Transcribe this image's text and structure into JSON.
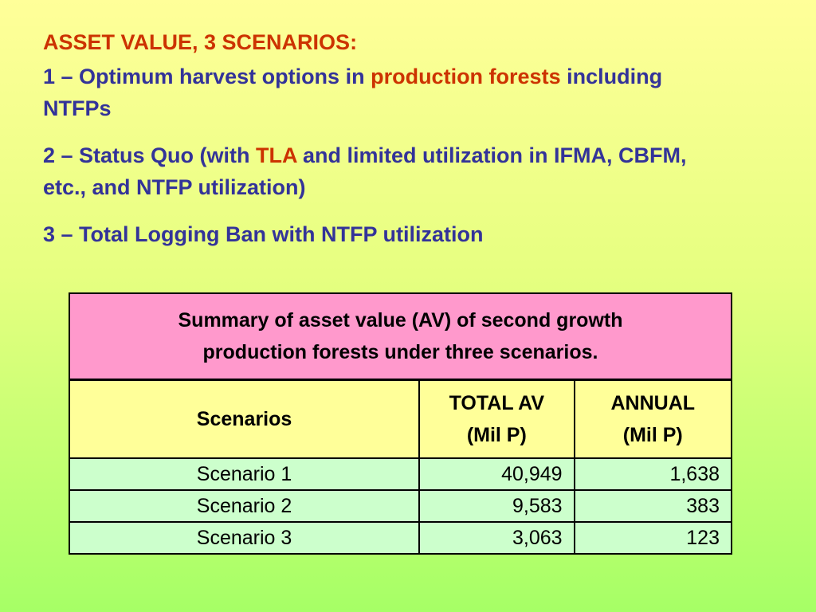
{
  "heading": "ASSET VALUE, 3 SCENARIOS:",
  "items": [
    {
      "prefix": "1 – Optimum harvest options in ",
      "accent": "production forests",
      "suffix": " including NTFPs"
    },
    {
      "prefix": "2 – Status Quo (with ",
      "accent": "TLA",
      "suffix": " and limited utilization in IFMA, CBFM, etc., and NTFP utilization)"
    },
    {
      "text": "3 – Total Logging Ban with NTFP utilization"
    }
  ],
  "table": {
    "caption_line1": "Summary of asset value (AV) of second growth",
    "caption_line2": "production forests under three scenarios.",
    "headers": {
      "scenarios": "Scenarios",
      "total_line1": "TOTAL AV",
      "total_line2": "(Mil P)",
      "annual_line1": "ANNUAL",
      "annual_line2": "(Mil P)"
    },
    "rows": [
      {
        "scenario": "Scenario 1",
        "total": "40,949",
        "annual": "1,638"
      },
      {
        "scenario": "Scenario 2",
        "total": "9,583",
        "annual": "383"
      },
      {
        "scenario": "Scenario 3",
        "total": "3,063",
        "annual": "123"
      }
    ]
  },
  "colors": {
    "heading": "#cc3300",
    "body_text": "#333399",
    "caption_bg": "#ff99cc",
    "header_bg": "#ffff99",
    "row_bg": "#ccffcc"
  }
}
